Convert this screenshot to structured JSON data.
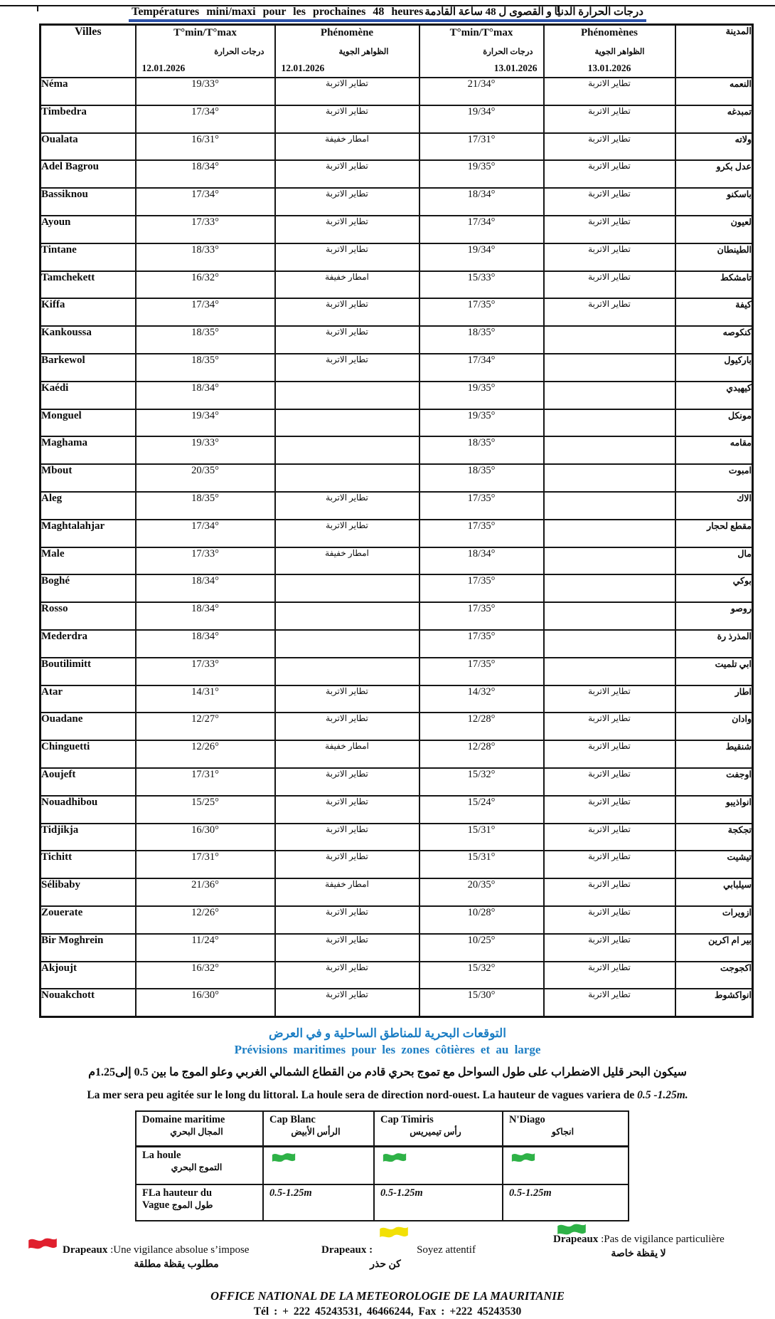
{
  "page": {
    "title_fr": "Températures mini/maxi pour les prochaines 48 heures",
    "title_ar": "درجات الحرارة الدنيا و القصوى ل 48 ساعة القادمة"
  },
  "colors": {
    "heading_blue": "#1c7ec4",
    "title_underline_blue": "#2c52aa",
    "flag_red": "#e01f2d",
    "flag_yellow": "#f2e006",
    "flag_green": "#2eb247"
  },
  "main_table": {
    "headers": {
      "villes": "Villes",
      "city_ar": "المدينة"
    },
    "columns": [
      {
        "title": "T°min/T°max",
        "sub_ar": "درجات  الحرارة",
        "date": "12.01.2026"
      },
      {
        "title": "Phénomène",
        "sub_ar": "الظواهر  الجوية",
        "date": "12.01.2026"
      },
      {
        "title": "T°min/T°max",
        "sub_ar": "درجات  الحرارة",
        "date": "13.01.2026"
      },
      {
        "title": "Phénomènes",
        "sub_ar": "الظواهر  الجوية",
        "date": "13.01.2026"
      }
    ],
    "rows": [
      {
        "city": "Néma",
        "t1": "19/33°",
        "p1": "تطاير الاتربة",
        "t2": "21/34°",
        "p2": "تطاير الاتربة",
        "ar": "النعمه"
      },
      {
        "city": "Timbedra",
        "t1": "17/34°",
        "p1": "تطاير الاتربة",
        "t2": "19/34°",
        "p2": "تطاير الاتربة",
        "ar": "تمبدغه"
      },
      {
        "city": "Oualata",
        "t1": "16/31°",
        "p1": "امطار خفيفة",
        "t2": "17/31°",
        "p2": "تطاير الاتربة",
        "ar": "ولاته"
      },
      {
        "city": "Adel Bagrou",
        "t1": "18/34°",
        "p1": "تطاير الاتربة",
        "t2": "19/35°",
        "p2": "تطاير الاتربة",
        "ar": "عدل بكرو"
      },
      {
        "city": "Bassiknou",
        "t1": "17/34°",
        "p1": "تطاير الاتربة",
        "t2": "18/34°",
        "p2": "تطاير الاتربة",
        "ar": "باسكنو"
      },
      {
        "city": "Ayoun",
        "t1": "17/33°",
        "p1": "تطاير الاتربة",
        "t2": "17/34°",
        "p2": "تطاير الاتربة",
        "ar": "لعيون"
      },
      {
        "city": "Tintane",
        "t1": "18/33°",
        "p1": "تطاير الاتربة",
        "t2": "19/34°",
        "p2": "تطاير الاتربة",
        "ar": "الطينطان"
      },
      {
        "city": "Tamchekett",
        "t1": "16/32°",
        "p1": "امطار خفيفة",
        "t2": "15/33°",
        "p2": "تطاير الاتربة",
        "ar": "تامشكط"
      },
      {
        "city": "Kiffa",
        "t1": "17/34°",
        "p1": "تطاير الاتربة",
        "t2": "17/35°",
        "p2": "تطاير الاتربة",
        "ar": "كيفة"
      },
      {
        "city": "Kankoussa",
        "t1": "18/35°",
        "p1": "تطاير الاتربة",
        "t2": "18/35°",
        "p2": "",
        "ar": "كنكوصه"
      },
      {
        "city": "Barkewol",
        "t1": "18/35°",
        "p1": "تطاير الاتربة",
        "t2": "17/34°",
        "p2": "",
        "ar": "باركيول"
      },
      {
        "city": "Kaédi",
        "t1": "18/34°",
        "p1": "",
        "t2": "19/35°",
        "p2": "",
        "ar": "كيهيدي"
      },
      {
        "city": "Monguel",
        "t1": "19/34°",
        "p1": "",
        "t2": "19/35°",
        "p2": "",
        "ar": "مونكل"
      },
      {
        "city": "Maghama",
        "t1": "19/33°",
        "p1": "",
        "t2": "18/35°",
        "p2": "",
        "ar": "مقامه"
      },
      {
        "city": "Mbout",
        "t1": "20/35°",
        "p1": "",
        "t2": "18/35°",
        "p2": "",
        "ar": "امبوت"
      },
      {
        "city": "Aleg",
        "t1": "18/35°",
        "p1": "تطاير الاتربة",
        "t2": "17/35°",
        "p2": "",
        "ar": "الاك"
      },
      {
        "city": "Maghtalahjar",
        "t1": "17/34°",
        "p1": "تطاير الاتربة",
        "t2": "17/35°",
        "p2": "",
        "ar": "مقطع لحجار"
      },
      {
        "city": "Male",
        "t1": "17/33°",
        "p1": "امطار خفيفة",
        "t2": "18/34°",
        "p2": "",
        "ar": "مال"
      },
      {
        "city": "Boghé",
        "t1": "18/34°",
        "p1": "",
        "t2": "17/35°",
        "p2": "",
        "ar": "بوكي"
      },
      {
        "city": "Rosso",
        "t1": "18/34°",
        "p1": "",
        "t2": "17/35°",
        "p2": "",
        "ar": "روصو"
      },
      {
        "city": "Mederdra",
        "t1": "18/34°",
        "p1": "",
        "t2": "17/35°",
        "p2": "",
        "ar": "المذرذ رة"
      },
      {
        "city": "Boutilimitt",
        "t1": "17/33°",
        "p1": "",
        "t2": "17/35°",
        "p2": "",
        "ar": "ابي تلميت"
      },
      {
        "city": "Atar",
        "t1": "14/31°",
        "p1": "تطاير الاتربة",
        "t2": "14/32°",
        "p2": "تطاير الاتربة",
        "ar": "اطار"
      },
      {
        "city": "Ouadane",
        "t1": "12/27°",
        "p1": "تطاير الاتربة",
        "t2": "12/28°",
        "p2": "تطاير الاتربة",
        "ar": "وادان"
      },
      {
        "city": "Chinguetti",
        "t1": "12/26°",
        "p1": "امطار خفيفة",
        "t2": "12/28°",
        "p2": "تطاير الاتربة",
        "ar": "شنقيط"
      },
      {
        "city": "Aoujeft",
        "t1": "17/31°",
        "p1": "تطاير الاتربة",
        "t2": "15/32°",
        "p2": "تطاير الاتربة",
        "ar": "اوجفت"
      },
      {
        "city": "Nouadhibou",
        "t1": "15/25°",
        "p1": "تطاير الاتربة",
        "t2": "15/24°",
        "p2": "تطاير الاتربة",
        "ar": "انواذيبو"
      },
      {
        "city": "Tidjikja",
        "t1": "16/30°",
        "p1": "تطاير الاتربة",
        "t2": "15/31°",
        "p2": "تطاير الاتربة",
        "ar": "تجكجة"
      },
      {
        "city": "Tichitt",
        "t1": "17/31°",
        "p1": "تطاير الاتربة",
        "t2": "15/31°",
        "p2": "تطاير الاتربة",
        "ar": "تيشيت"
      },
      {
        "city": "Sélibaby",
        "t1": "21/36°",
        "p1": "امطار خفيفة",
        "t2": "20/35°",
        "p2": "تطاير الاتربة",
        "ar": "سيلبابي"
      },
      {
        "city": "Zouerate",
        "t1": "12/26°",
        "p1": "تطاير الاتربة",
        "t2": "10/28°",
        "p2": "تطاير الاتربة",
        "ar": "ازويرات"
      },
      {
        "city": "Bir Moghrein",
        "t1": "11/24°",
        "p1": "تطاير الاتربة",
        "t2": "10/25°",
        "p2": "تطاير الاتربة",
        "ar": "بير ام اكرين"
      },
      {
        "city": "Akjoujt",
        "t1": "16/32°",
        "p1": "تطاير الاتربة",
        "t2": "15/32°",
        "p2": "تطاير الاتربة",
        "ar": "اكجوجت"
      },
      {
        "city": "Nouakchott",
        "t1": "16/30°",
        "p1": "تطاير الاتربة",
        "t2": "15/30°",
        "p2": "تطاير الاتربة",
        "ar": "انواكشوط"
      }
    ]
  },
  "maritime": {
    "heading_ar": "التوقعات البحرية للمناطق الساحلية و في العرض",
    "heading_fr": "Prévisions maritimes pour les zones côtières et au large",
    "sea_state_ar": "سيكون البحر قليل الاضطراب على طول السواحل مع تموج بحري قادم من القطاع الشمالي الغربي وعلو الموج ما بين 0.5 إلى1.25م",
    "sea_state_fr_prefix": "La mer sera peu agitée sur le long du littoral. La houle sera de direction nord-ouest.  La hauteur de vagues variera de ",
    "sea_state_fr_value": "0.5 -1.25m.",
    "table": {
      "domain_fr": "Domaine maritime",
      "domain_ar": "المجال  البحري",
      "stations": [
        {
          "fr": "Cap Blanc",
          "ar": "الرأس الأبيض"
        },
        {
          "fr": "Cap Timiris",
          "ar": "رأس تيميريس"
        },
        {
          "fr": "N'Diago",
          "ar": "انجاكو"
        }
      ],
      "houle_label_fr": "La houle",
      "houle_label_ar": "التموج البحري",
      "houle_flag_color": "#2eb247",
      "wave_label_line1": "FLa hauteur du",
      "wave_label_line2": "Vague",
      "wave_label_ar": "طول الموج",
      "wave_values": [
        "0.5-1.25m",
        "0.5-1.25m",
        "0.5-1.25m"
      ]
    }
  },
  "legend": {
    "items": [
      {
        "flag_color": "#e01f2d",
        "label": "Drapeaux",
        "desc": " :Une vigilance absolue s’impose",
        "ar": "مطلوب يقظة مطلقة",
        "flag_style": "inline"
      },
      {
        "flag_color": "#f2e006",
        "label": "Drapeaux :",
        "desc": "Soyez attentif",
        "ar": "كن حذر",
        "flag_style": "raised"
      },
      {
        "flag_color": "#2eb247",
        "label": "Drapeaux",
        "desc": " :Pas de vigilance particulière",
        "ar": "لا يقظة خاصة",
        "flag_style": "over"
      }
    ]
  },
  "footer": {
    "office": "OFFICE NATIONAL DE LA METEOROLOGIE DE LA MAURITANIE",
    "contact": "Tél  : + 222 45243531,  46466244,   Fax :  +222 45243530"
  }
}
